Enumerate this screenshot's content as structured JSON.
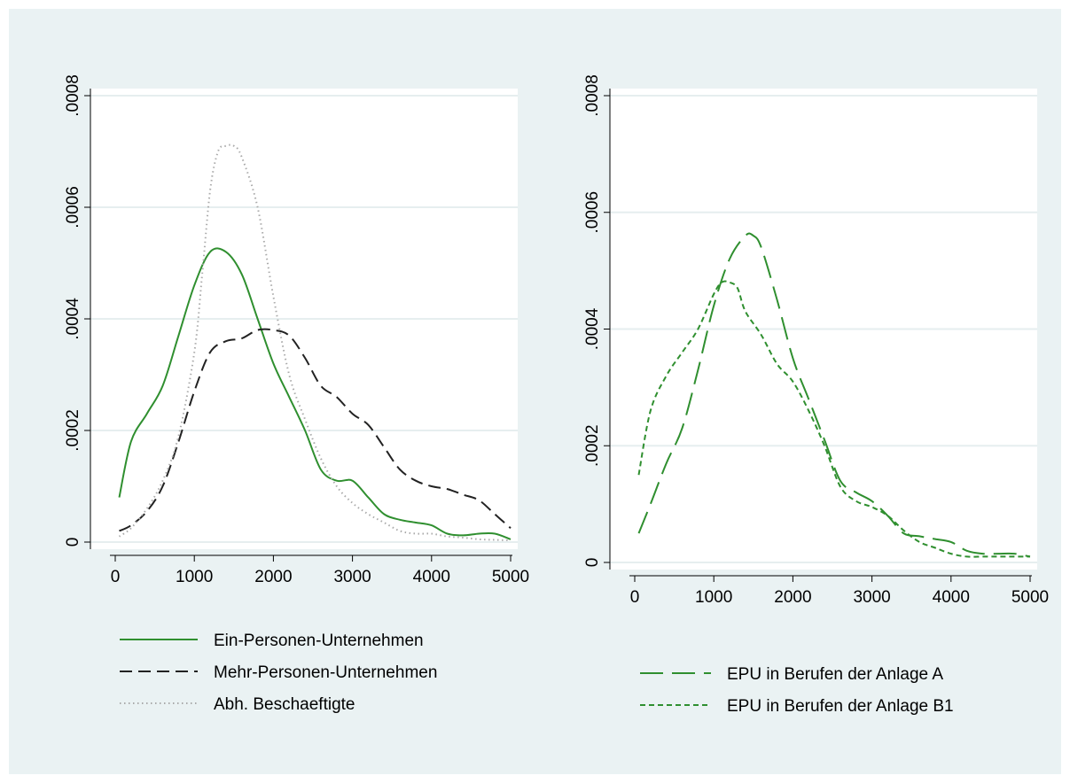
{
  "chart_data": [
    {
      "type": "line",
      "title": "",
      "xlabel": "",
      "ylabel": "",
      "xlim": [
        0,
        5000
      ],
      "ylim": [
        0,
        0.0008
      ],
      "x_ticks": [
        "0",
        "1000",
        "2000",
        "3000",
        "4000",
        "5000"
      ],
      "y_ticks": [
        "0",
        ".0002",
        ".0004",
        ".0006",
        ".0008"
      ],
      "grid": true,
      "legend_position": "bottom",
      "series": [
        {
          "name": "Ein-Personen-Unternehmen",
          "color": "#2f8f2f",
          "dash": "solid",
          "x": [
            50,
            200,
            400,
            600,
            800,
            1000,
            1200,
            1400,
            1600,
            1800,
            2000,
            2200,
            2400,
            2600,
            2800,
            3000,
            3200,
            3400,
            3600,
            3800,
            4000,
            4200,
            4400,
            4600,
            4800,
            5000
          ],
          "y": [
            8e-05,
            0.00018,
            0.00023,
            0.00028,
            0.00037,
            0.00046,
            0.00052,
            0.00052,
            0.00048,
            0.0004,
            0.00032,
            0.00026,
            0.0002,
            0.00013,
            0.00011,
            0.00011,
            8e-05,
            5e-05,
            4e-05,
            3.5e-05,
            3e-05,
            1.5e-05,
            1.2e-05,
            1.5e-05,
            1.5e-05,
            5e-06
          ]
        },
        {
          "name": "Mehr-Personen-Unternehmen",
          "color": "#222222",
          "dash": "dashed",
          "x": [
            50,
            200,
            400,
            600,
            800,
            1000,
            1200,
            1400,
            1600,
            1800,
            2000,
            2200,
            2400,
            2600,
            2800,
            3000,
            3200,
            3400,
            3600,
            3800,
            4000,
            4200,
            4400,
            4600,
            4800,
            5000
          ],
          "y": [
            2e-05,
            3e-05,
            5.5e-05,
            0.0001,
            0.00018,
            0.00027,
            0.00034,
            0.00036,
            0.000365,
            0.00038,
            0.00038,
            0.00037,
            0.00033,
            0.00028,
            0.00026,
            0.00023,
            0.00021,
            0.00017,
            0.00013,
            0.00011,
            0.0001,
            9.5e-05,
            8.5e-05,
            7.5e-05,
            5e-05,
            2.5e-05
          ]
        },
        {
          "name": "Abh. Beschaeftigte",
          "color": "#aaaaaa",
          "dash": "dotted",
          "x": [
            50,
            200,
            400,
            600,
            800,
            1000,
            1100,
            1200,
            1300,
            1400,
            1500,
            1600,
            1800,
            2000,
            2200,
            2400,
            2600,
            2800,
            3000,
            3200,
            3400,
            3600,
            3800,
            4000,
            4200,
            4400,
            4600,
            4800,
            5000
          ],
          "y": [
            1e-05,
            2.5e-05,
            6e-05,
            0.00011,
            0.00019,
            0.00034,
            0.00048,
            0.00063,
            0.0007,
            0.00071,
            0.00071,
            0.00069,
            0.0006,
            0.00044,
            0.0003,
            0.00022,
            0.00015,
            0.0001,
            7e-05,
            5e-05,
            3.5e-05,
            2e-05,
            1.5e-05,
            1.5e-05,
            1e-05,
            8e-06,
            5e-06,
            4e-06,
            3e-06
          ]
        }
      ]
    },
    {
      "type": "line",
      "title": "",
      "xlabel": "",
      "ylabel": "",
      "xlim": [
        0,
        5000
      ],
      "ylim": [
        0,
        0.0008
      ],
      "x_ticks": [
        "0",
        "1000",
        "2000",
        "3000",
        "4000",
        "5000"
      ],
      "y_ticks": [
        "0",
        ".0002",
        ".0004",
        ".0006",
        ".0008"
      ],
      "grid": true,
      "legend_position": "bottom",
      "series": [
        {
          "name": "EPU in Berufen der Anlage A",
          "color": "#2f8f2f",
          "dash": "longdash",
          "x": [
            50,
            200,
            400,
            600,
            800,
            1000,
            1200,
            1400,
            1500,
            1600,
            1800,
            2000,
            2200,
            2400,
            2600,
            2800,
            3000,
            3200,
            3400,
            3600,
            3800,
            4000,
            4200,
            4400,
            4600,
            4800,
            5000
          ],
          "y": [
            5e-05,
            0.0001,
            0.00017,
            0.00023,
            0.00033,
            0.00044,
            0.00052,
            0.00056,
            0.00056,
            0.00054,
            0.00045,
            0.00035,
            0.00028,
            0.00021,
            0.00014,
            0.00012,
            0.000105,
            8e-05,
            5e-05,
            4.5e-05,
            4e-05,
            3.5e-05,
            2e-05,
            1.5e-05,
            1.5e-05,
            1.5e-05,
            1e-05
          ]
        },
        {
          "name": "EPU in Berufen der Anlage B1",
          "color": "#2f8f2f",
          "dash": "shortdash",
          "x": [
            50,
            200,
            400,
            600,
            800,
            1000,
            1100,
            1200,
            1300,
            1400,
            1600,
            1800,
            2000,
            2200,
            2400,
            2600,
            2800,
            3000,
            3200,
            3400,
            3600,
            3800,
            4000,
            4200,
            4400,
            4600,
            4800,
            5000
          ],
          "y": [
            0.00015,
            0.00026,
            0.00032,
            0.00036,
            0.0004,
            0.00046,
            0.00048,
            0.00048,
            0.00047,
            0.00043,
            0.00039,
            0.00034,
            0.00031,
            0.00026,
            0.0002,
            0.00013,
            0.000105,
            9.5e-05,
            8e-05,
            5.5e-05,
            3.5e-05,
            2.5e-05,
            1.5e-05,
            1e-05,
            1e-05,
            1e-05,
            1e-05,
            1e-05
          ]
        }
      ]
    }
  ]
}
